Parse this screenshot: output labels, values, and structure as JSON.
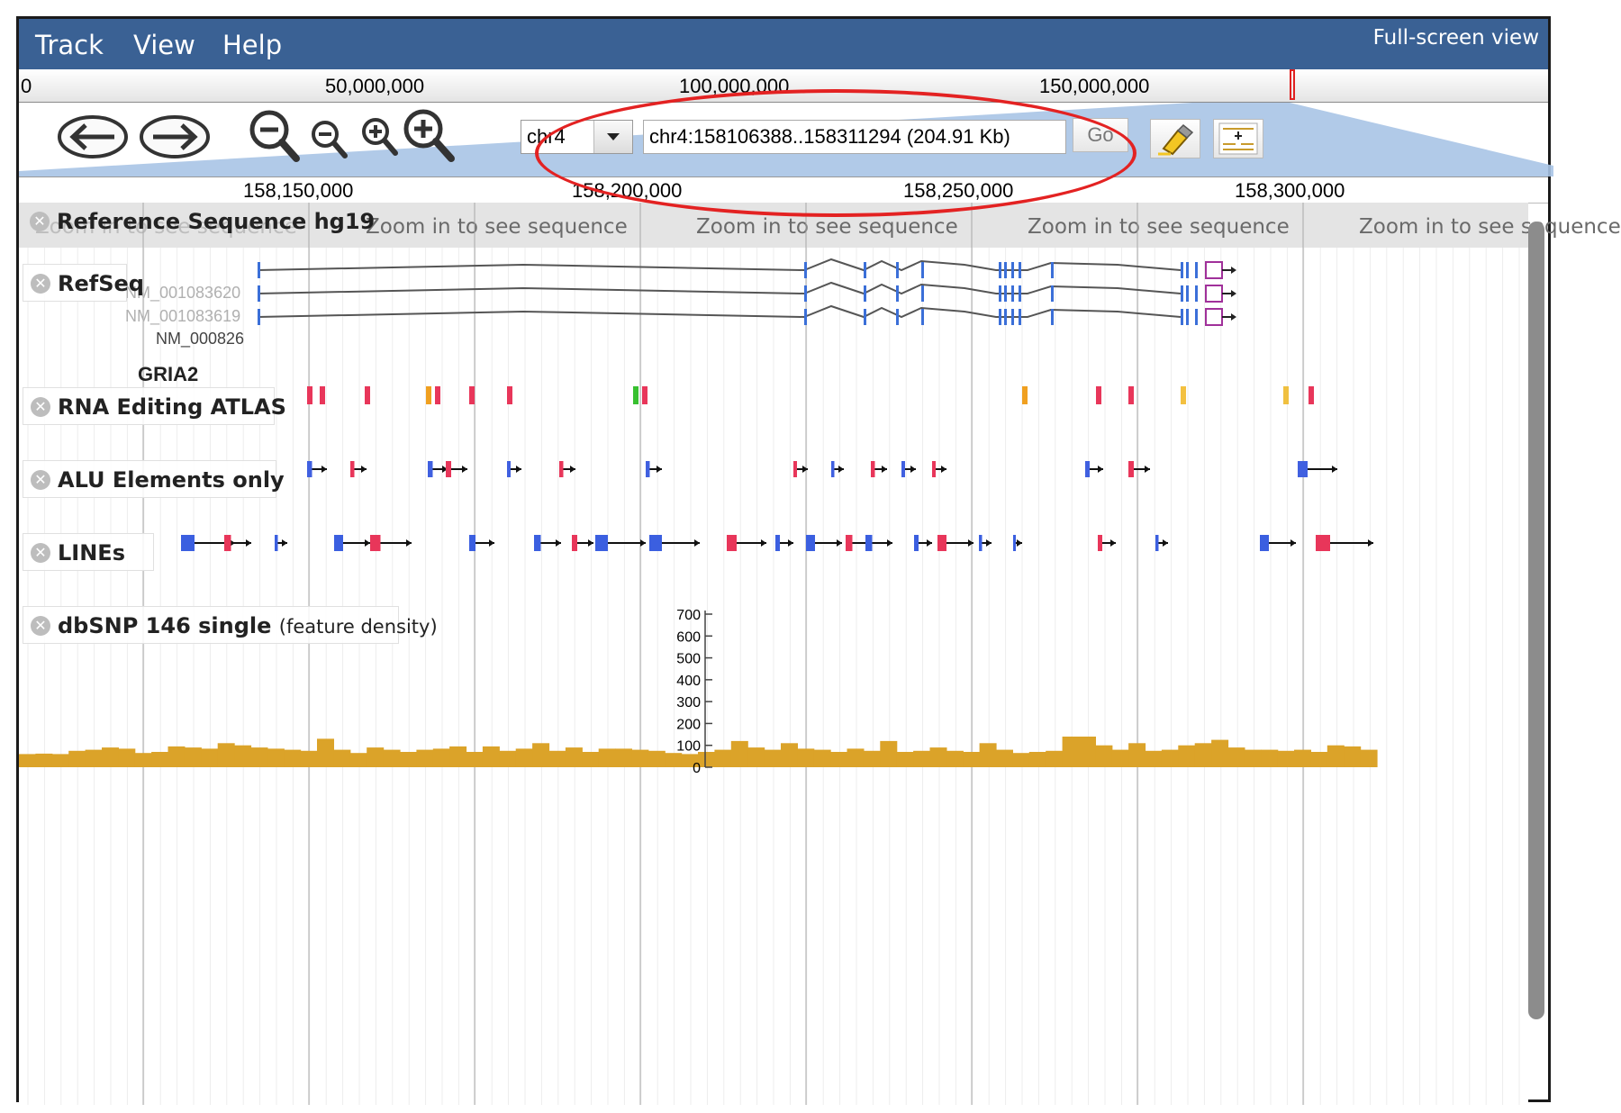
{
  "menu": {
    "items": [
      "Track",
      "View",
      "Help"
    ],
    "fullscreen": "Full-screen view"
  },
  "overview": {
    "labels": [
      "0",
      "50,000,000",
      "100,000,000",
      "150,000,000"
    ]
  },
  "nav": {
    "chromosome": "chr4",
    "location": "chr4:158106388..158311294 (204.91 Kb)",
    "go_label": "Go"
  },
  "ruler": {
    "labels": [
      "158,150,000",
      "158,200,000",
      "158,250,000",
      "158,300,000"
    ]
  },
  "tracks": {
    "reference": {
      "name": "Reference Sequence hg19",
      "messages": [
        "Zoom in to see sequence",
        "Zoom in to see sequence",
        "Zoom in to see sequence",
        "Zoom in to see sequence",
        "Zoom in to see sequence"
      ]
    },
    "refseq": {
      "name": "RefSeq",
      "transcripts": [
        "NM_001083620",
        "NM_001083619",
        "NM_000826"
      ],
      "gene": "GRIA2"
    },
    "rna_editing": {
      "name": "RNA Editing ATLAS"
    },
    "alu": {
      "name": "ALU Elements only"
    },
    "lines": {
      "name": "LINEs"
    },
    "dbsnp": {
      "name": "dbSNP 146 single",
      "subtitle": "(feature density)",
      "axis_ticks": [
        "700",
        "600",
        "500",
        "400",
        "300",
        "200",
        "100",
        "0"
      ]
    }
  },
  "colors": {
    "menubar": "#3a6194",
    "density": "#dba329",
    "annotation": "#e32222"
  },
  "icons": [
    "back-arrow-icon",
    "forward-arrow-icon",
    "zoom-out-large-icon",
    "zoom-out-small-icon",
    "zoom-in-small-icon",
    "zoom-in-large-icon",
    "highlight-pen-icon",
    "track-selector-icon",
    "close-icon"
  ],
  "chart_data": {
    "type": "bar",
    "title": "dbSNP 146 single (feature density)",
    "ylim": [
      0,
      700
    ],
    "values": [
      60,
      62,
      60,
      75,
      80,
      90,
      85,
      65,
      70,
      95,
      90,
      85,
      110,
      100,
      90,
      85,
      80,
      75,
      130,
      80,
      65,
      90,
      80,
      70,
      80,
      85,
      95,
      70,
      95,
      75,
      85,
      110,
      75,
      90,
      70,
      85,
      85,
      80,
      75,
      65,
      60,
      70,
      80,
      120,
      90,
      80,
      110,
      85,
      80,
      70,
      85,
      75,
      120,
      70,
      75,
      90,
      75,
      70,
      110,
      80,
      65,
      70,
      75,
      140,
      140,
      100,
      80,
      110,
      75,
      80,
      100,
      110,
      125,
      90,
      80,
      80,
      75,
      80,
      70,
      100,
      95,
      80
    ]
  }
}
